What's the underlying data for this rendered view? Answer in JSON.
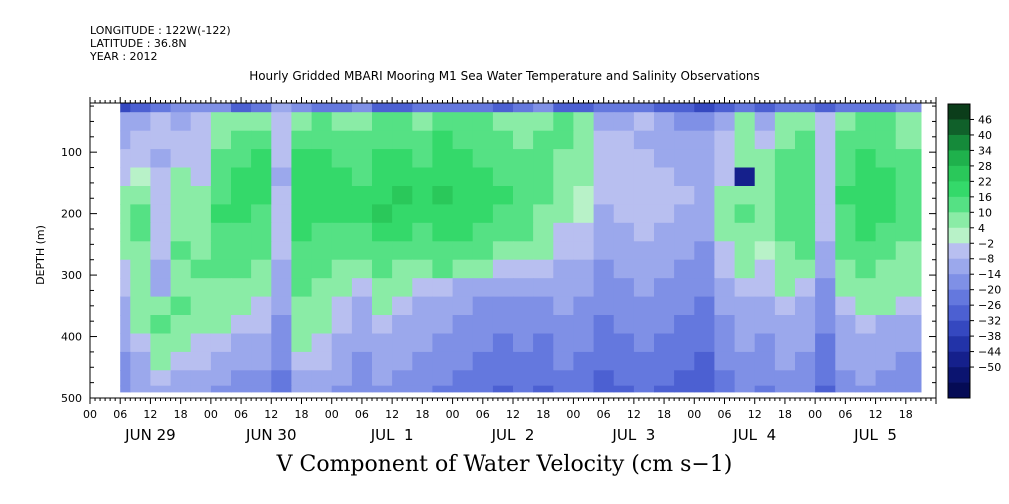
{
  "header": {
    "longitude": "LONGITUDE : 122W(-122)",
    "latitude": "LATITUDE : 36.8N",
    "year": "YEAR : 2012"
  },
  "chart_data": {
    "type": "heatmap",
    "title": "Hourly Gridded MBARI Mooring M1 Sea Water Temperature and Salinity Observations",
    "variable_label": "V Component of Water Velocity (cm s−1)",
    "ylabel": "DEPTH (m)",
    "ylim": [
      500,
      20
    ],
    "y_ticks": [
      100,
      200,
      300,
      400,
      500
    ],
    "x_hour_ticks": [
      "00",
      "06",
      "12",
      "18",
      "00",
      "06",
      "12",
      "18",
      "00",
      "06",
      "12",
      "18",
      "00",
      "06",
      "12",
      "18",
      "00",
      "06",
      "12",
      "18",
      "00",
      "06",
      "12",
      "18",
      "00",
      "06",
      "12",
      "18"
    ],
    "x_day_labels": [
      "JUN 29",
      "JUN 30",
      "JUL  1",
      "JUL  2",
      "JUL  3",
      "JUL  4",
      "JUL  5"
    ],
    "x_range_hours": [
      0,
      168
    ],
    "data_start_hour": 6,
    "data_end_hour": 165,
    "colorbar": {
      "levels": [
        46,
        40,
        34,
        28,
        22,
        16,
        10,
        4,
        -2,
        -8,
        -14,
        -20,
        -26,
        -32,
        -38,
        -44,
        -50
      ],
      "colors": [
        "#0b3d1a",
        "#10602a",
        "#158a3a",
        "#1fb14c",
        "#2ac85a",
        "#34d96a",
        "#55e184",
        "#8aeca6",
        "#b8f2c8",
        "#b8bff0",
        "#9ba8ec",
        "#7f90e6",
        "#6478de",
        "#4c60d2",
        "#3548c0",
        "#2233a8",
        "#15208c",
        "#0b1470",
        "#050b55"
      ]
    },
    "grid_columns_hours": [
      6,
      10,
      14,
      18,
      22,
      26,
      30,
      34,
      38,
      42,
      46,
      50,
      54,
      58,
      62,
      66,
      70,
      74,
      78,
      82,
      86,
      90,
      94,
      98,
      102,
      106,
      110,
      114,
      118,
      122,
      126,
      130,
      134,
      138,
      142,
      146,
      150,
      154,
      158,
      162
    ],
    "grid_rows_depth": [
      20,
      50,
      80,
      110,
      140,
      170,
      200,
      230,
      260,
      290,
      320,
      350,
      380,
      410,
      440,
      470,
      490
    ],
    "values": [
      [
        -34,
        -30,
        -22,
        -18,
        -16,
        -20,
        -28,
        -22,
        -14,
        -18,
        -24,
        -26,
        -20,
        -30,
        -28,
        -26,
        -26,
        -24,
        -22,
        -28,
        -24,
        -20,
        -30,
        -28,
        -26,
        -24,
        -26,
        -30,
        -32,
        -34,
        -28,
        -26,
        -28,
        -26,
        -24,
        -28,
        -26,
        -24,
        -22,
        -20
      ],
      [
        -14,
        -10,
        -8,
        -10,
        -8,
        6,
        4,
        8,
        -6,
        8,
        10,
        8,
        6,
        10,
        12,
        8,
        10,
        12,
        10,
        8,
        6,
        8,
        10,
        6,
        -10,
        -12,
        -8,
        -14,
        -16,
        -18,
        -12,
        4,
        -10,
        6,
        8,
        -8,
        6,
        10,
        12,
        6
      ],
      [
        -10,
        -6,
        -8,
        -4,
        -6,
        6,
        10,
        12,
        -6,
        12,
        14,
        12,
        10,
        12,
        14,
        12,
        16,
        14,
        12,
        10,
        8,
        12,
        10,
        8,
        -6,
        -8,
        -10,
        -12,
        -14,
        -10,
        -8,
        6,
        -6,
        8,
        10,
        -6,
        10,
        14,
        12,
        8
      ],
      [
        -6,
        -4,
        -10,
        -6,
        -4,
        10,
        14,
        16,
        -8,
        16,
        18,
        14,
        12,
        16,
        18,
        14,
        18,
        16,
        14,
        12,
        10,
        14,
        8,
        6,
        -4,
        -6,
        -8,
        -10,
        -12,
        -14,
        -6,
        8,
        4,
        10,
        12,
        -4,
        12,
        16,
        14,
        10
      ],
      [
        -4,
        2,
        -8,
        4,
        -6,
        12,
        16,
        18,
        -10,
        18,
        20,
        16,
        14,
        18,
        20,
        16,
        20,
        18,
        16,
        14,
        12,
        12,
        6,
        4,
        -6,
        -4,
        -6,
        -8,
        -10,
        -12,
        -4,
        -50,
        6,
        12,
        14,
        -6,
        14,
        18,
        16,
        12
      ],
      [
        4,
        6,
        -6,
        6,
        4,
        14,
        18,
        16,
        -6,
        20,
        18,
        18,
        16,
        20,
        22,
        18,
        22,
        20,
        18,
        16,
        14,
        10,
        4,
        2,
        -8,
        -6,
        -4,
        -6,
        -8,
        -10,
        4,
        8,
        4,
        10,
        12,
        -4,
        16,
        20,
        18,
        14
      ],
      [
        8,
        10,
        -4,
        8,
        6,
        16,
        16,
        14,
        -4,
        18,
        16,
        16,
        18,
        22,
        20,
        16,
        20,
        18,
        16,
        14,
        12,
        8,
        4,
        -2,
        -10,
        -8,
        -6,
        -8,
        -10,
        -12,
        6,
        10,
        6,
        12,
        14,
        -6,
        14,
        18,
        16,
        12
      ],
      [
        6,
        10,
        -6,
        8,
        6,
        14,
        14,
        12,
        -6,
        16,
        14,
        12,
        14,
        18,
        16,
        14,
        18,
        16,
        14,
        12,
        10,
        6,
        -4,
        -6,
        -12,
        -10,
        -8,
        -10,
        -12,
        -14,
        4,
        8,
        4,
        10,
        12,
        -8,
        12,
        16,
        14,
        10
      ],
      [
        4,
        8,
        -8,
        10,
        8,
        12,
        12,
        10,
        -8,
        14,
        12,
        10,
        10,
        14,
        12,
        10,
        14,
        12,
        10,
        8,
        6,
        4,
        -6,
        -8,
        -14,
        -12,
        -10,
        -12,
        -14,
        -16,
        -4,
        6,
        2,
        8,
        10,
        -10,
        10,
        14,
        12,
        8
      ],
      [
        -4,
        6,
        -10,
        8,
        10,
        10,
        10,
        8,
        -10,
        12,
        10,
        6,
        6,
        10,
        8,
        6,
        10,
        8,
        6,
        -4,
        -6,
        -8,
        -10,
        -12,
        -16,
        -14,
        -12,
        -14,
        -16,
        -18,
        -8,
        4,
        -4,
        6,
        8,
        -12,
        8,
        10,
        8,
        6
      ],
      [
        -8,
        4,
        -12,
        6,
        8,
        8,
        6,
        4,
        -12,
        10,
        8,
        4,
        -6,
        6,
        4,
        -4,
        -8,
        -10,
        -12,
        -14,
        -12,
        -14,
        -12,
        -14,
        -18,
        -16,
        -14,
        -16,
        -18,
        -20,
        -12,
        -6,
        -8,
        4,
        -6,
        -16,
        6,
        8,
        6,
        4
      ],
      [
        -10,
        6,
        8,
        10,
        6,
        6,
        4,
        -6,
        -14,
        8,
        6,
        -6,
        -10,
        4,
        -6,
        -10,
        -12,
        -14,
        -16,
        -18,
        -16,
        -18,
        -14,
        -16,
        -20,
        -18,
        -16,
        -18,
        -20,
        -22,
        -14,
        -10,
        -12,
        -8,
        -10,
        -18,
        -8,
        6,
        4,
        -6
      ],
      [
        -12,
        8,
        10,
        8,
        4,
        4,
        -6,
        -8,
        -16,
        6,
        4,
        -8,
        -12,
        -8,
        -10,
        -12,
        -14,
        -16,
        -18,
        -20,
        -18,
        -20,
        -16,
        -18,
        -22,
        -20,
        -18,
        -20,
        -22,
        -24,
        -16,
        -12,
        -14,
        -10,
        -12,
        -20,
        -10,
        -8,
        -10,
        -12
      ],
      [
        -14,
        -6,
        6,
        4,
        -6,
        -8,
        -10,
        -12,
        -18,
        4,
        -6,
        -10,
        -14,
        -10,
        -12,
        -14,
        -16,
        -18,
        -20,
        -22,
        -20,
        -22,
        -18,
        -20,
        -24,
        -22,
        -20,
        -22,
        -24,
        -26,
        -18,
        -14,
        -16,
        -12,
        -14,
        -22,
        -12,
        -10,
        -12,
        -14
      ],
      [
        -16,
        -10,
        4,
        -6,
        -8,
        -10,
        -12,
        -14,
        -20,
        -6,
        -8,
        -12,
        -16,
        -12,
        -14,
        -16,
        -18,
        -20,
        -22,
        -24,
        -22,
        -24,
        -20,
        -22,
        -26,
        -24,
        -22,
        -24,
        -26,
        -28,
        -20,
        -16,
        -18,
        -14,
        -16,
        -24,
        -14,
        -12,
        -14,
        -16
      ],
      [
        -18,
        -12,
        -8,
        -10,
        -12,
        -14,
        -16,
        -18,
        -22,
        -10,
        -12,
        -14,
        -18,
        -14,
        -16,
        -18,
        -20,
        -22,
        -24,
        -26,
        -24,
        -26,
        -22,
        -24,
        -28,
        -26,
        -24,
        -26,
        -28,
        -30,
        -22,
        -18,
        -20,
        -16,
        -18,
        -26,
        -16,
        -14,
        -16,
        -18
      ],
      [
        -20,
        -14,
        -10,
        -12,
        -14,
        -16,
        -18,
        -20,
        -24,
        -12,
        -14,
        -16,
        -20,
        -16,
        -18,
        -20,
        -22,
        -24,
        -26,
        -28,
        -26,
        -28,
        -24,
        -26,
        -30,
        -28,
        -26,
        -28,
        -30,
        -32,
        -24,
        -20,
        -22,
        -18,
        -20,
        -28,
        -18,
        -16,
        -18,
        -20
      ]
    ]
  }
}
